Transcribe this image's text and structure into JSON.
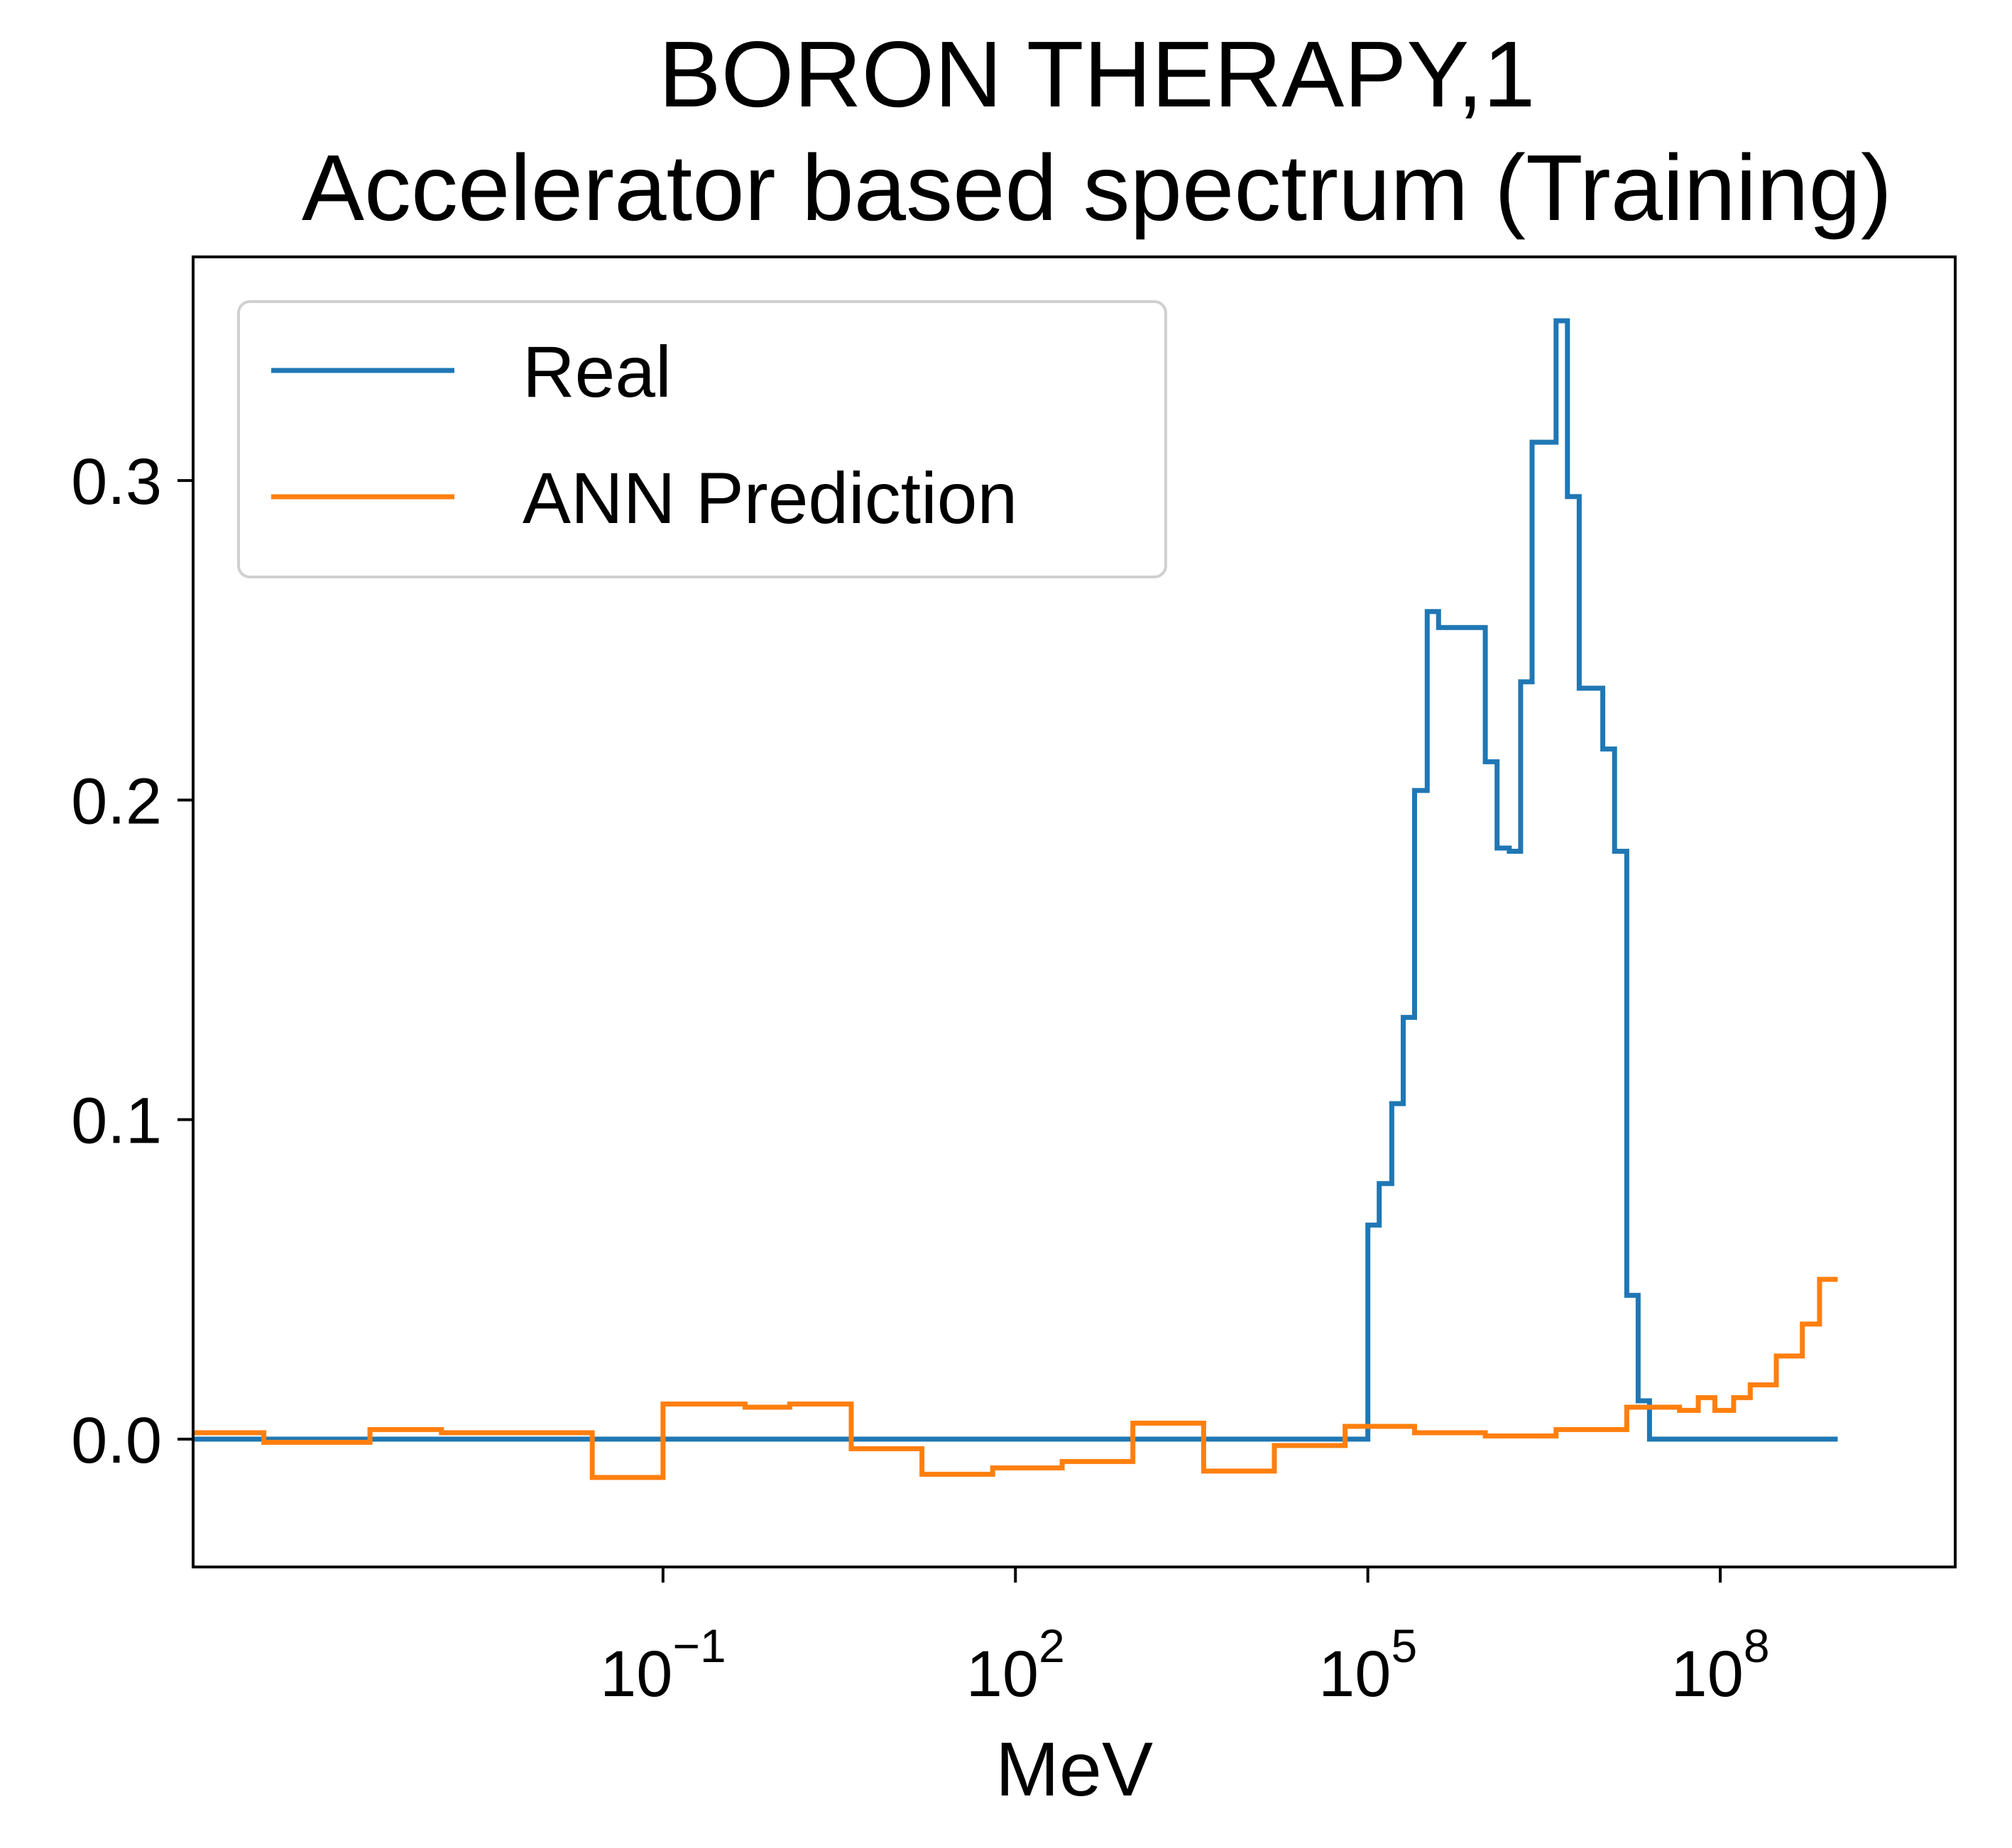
{
  "chart_data": {
    "type": "line",
    "drawstyle": "steps",
    "title": "BORON THERAPY,1",
    "subtitle": "Accelerator based spectrum (Training)",
    "xlabel": "MeV",
    "ylabel": "",
    "xscale": "log",
    "xlim": [
      1e-05,
      10000000000.0
    ],
    "ylim": [
      -0.04,
      0.37
    ],
    "xticks": [
      {
        "value": 0.1,
        "base": "10",
        "exp": "−1"
      },
      {
        "value": 100,
        "base": "10",
        "exp": "2"
      },
      {
        "value": 100000,
        "base": "10",
        "exp": "5"
      },
      {
        "value": 100000000,
        "base": "10",
        "exp": "8"
      }
    ],
    "yticks": [
      {
        "value": 0.0,
        "label": "0.0"
      },
      {
        "value": 0.1,
        "label": "0.1"
      },
      {
        "value": 0.2,
        "label": "0.2"
      },
      {
        "value": 0.3,
        "label": "0.3"
      }
    ],
    "grid": false,
    "legend_position": "top-left",
    "series": [
      {
        "name": "Real",
        "color": "#1f77b4",
        "points": [
          [
            1e-05,
            0
          ],
          [
            1000,
            0
          ],
          [
            80000,
            0
          ],
          [
            100000,
            0.067
          ],
          [
            125000,
            0.08
          ],
          [
            160000,
            0.105
          ],
          [
            200000,
            0.132
          ],
          [
            250000,
            0.203
          ],
          [
            320000,
            0.259
          ],
          [
            400000,
            0.254
          ],
          [
            500000,
            0.254
          ],
          [
            630000,
            0.254
          ],
          [
            800000,
            0.254
          ],
          [
            1000000,
            0.212
          ],
          [
            1260000,
            0.185
          ],
          [
            1600000,
            0.184
          ],
          [
            2000000,
            0.237
          ],
          [
            2500000,
            0.312
          ],
          [
            3200000,
            0.312
          ],
          [
            4000000,
            0.35
          ],
          [
            5000000,
            0.295
          ],
          [
            6300000,
            0.235
          ],
          [
            8000000,
            0.235
          ],
          [
            10000000,
            0.216
          ],
          [
            12600000,
            0.184
          ],
          [
            16000000,
            0.045
          ],
          [
            20000000,
            0.012
          ],
          [
            25000000,
            0
          ],
          [
            1000000000,
            0
          ]
        ]
      },
      {
        "name": "ANN Prediction",
        "color": "#ff7f0e",
        "points": [
          [
            1e-05,
            0.002
          ],
          [
            4e-05,
            0.002
          ],
          [
            4e-05,
            -0.001
          ],
          [
            0.00032,
            -0.001
          ],
          [
            0.00032,
            0.003
          ],
          [
            0.0013,
            0.003
          ],
          [
            0.0013,
            0.002
          ],
          [
            0.025,
            0.002
          ],
          [
            0.025,
            -0.012
          ],
          [
            0.1,
            -0.012
          ],
          [
            0.1,
            0.011
          ],
          [
            0.5,
            0.011
          ],
          [
            0.5,
            0.01
          ],
          [
            1.2,
            0.01
          ],
          [
            1.2,
            0.011
          ],
          [
            4,
            0.011
          ],
          [
            4,
            -0.003
          ],
          [
            16,
            -0.003
          ],
          [
            16,
            -0.011
          ],
          [
            64,
            -0.011
          ],
          [
            64,
            -0.009
          ],
          [
            250,
            -0.009
          ],
          [
            250,
            -0.007
          ],
          [
            1000,
            -0.007
          ],
          [
            1000,
            0.005
          ],
          [
            4000,
            0.005
          ],
          [
            4000,
            -0.01
          ],
          [
            16000,
            -0.01
          ],
          [
            16000,
            -0.002
          ],
          [
            64000,
            -0.002
          ],
          [
            64000,
            0.004
          ],
          [
            250000,
            0.004
          ],
          [
            250000,
            0.002
          ],
          [
            1000000,
            0.002
          ],
          [
            1000000,
            0.001
          ],
          [
            4000000,
            0.001
          ],
          [
            4000000,
            0.003
          ],
          [
            16000000,
            0.003
          ],
          [
            16000000,
            0.01
          ],
          [
            45000000,
            0.01
          ],
          [
            45000000,
            0.009
          ],
          [
            65000000,
            0.009
          ],
          [
            65000000,
            0.013
          ],
          [
            90000000,
            0.013
          ],
          [
            90000000,
            0.009
          ],
          [
            130000000,
            0.009
          ],
          [
            130000000,
            0.013
          ],
          [
            180000000,
            0.013
          ],
          [
            180000000,
            0.017
          ],
          [
            300000000,
            0.017
          ],
          [
            300000000,
            0.026
          ],
          [
            500000000,
            0.026
          ],
          [
            500000000,
            0.036
          ],
          [
            700000000,
            0.036
          ],
          [
            700000000,
            0.05
          ],
          [
            1000000000,
            0.05
          ]
        ]
      }
    ]
  }
}
